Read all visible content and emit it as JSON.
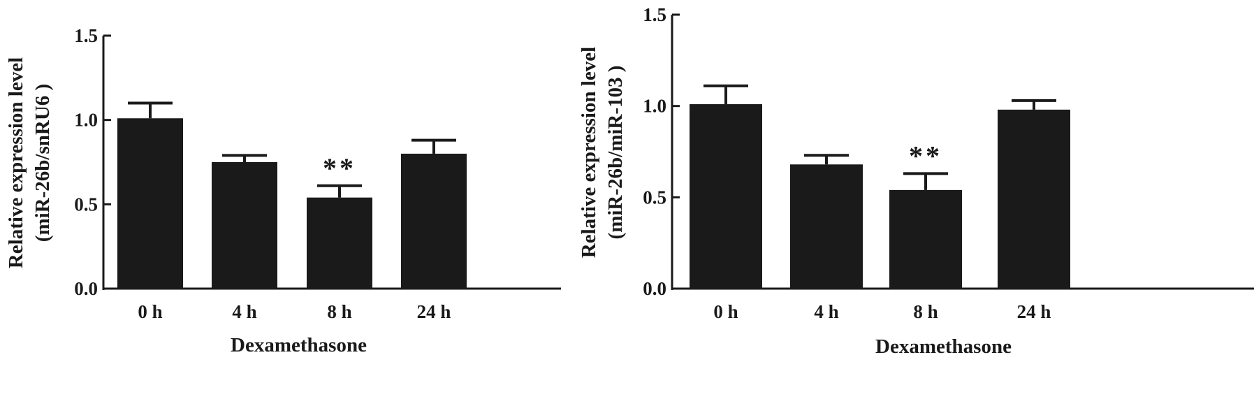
{
  "chart_data": [
    {
      "type": "bar",
      "categories": [
        "0 h",
        "4 h",
        "8 h",
        "24 h"
      ],
      "values": [
        1.01,
        0.75,
        0.54,
        0.8
      ],
      "errors": [
        0.09,
        0.04,
        0.07,
        0.08
      ],
      "significance": [
        "",
        "",
        "**",
        ""
      ],
      "xlabel": "Dexamethasone",
      "ylabel_lines": [
        "Relative expression level",
        "(miR-26b/snRU6 )"
      ],
      "ylim": [
        0,
        1.5
      ],
      "yticks": [
        "0.0",
        "0.5",
        "1.0",
        "1.5"
      ],
      "grid": false,
      "bar_color": "#1a1a1a"
    },
    {
      "type": "bar",
      "categories": [
        "0 h",
        "4 h",
        "8 h",
        "24 h"
      ],
      "values": [
        1.01,
        0.68,
        0.54,
        0.98
      ],
      "errors": [
        0.1,
        0.05,
        0.09,
        0.05
      ],
      "significance": [
        "",
        "",
        "**",
        ""
      ],
      "xlabel": "Dexamethasone",
      "ylabel_lines": [
        "Relative expression level",
        "(miR-26b/miR-103 )"
      ],
      "ylim": [
        0,
        1.5
      ],
      "yticks": [
        "0.0",
        "0.5",
        "1.0",
        "1.5"
      ],
      "grid": false,
      "bar_color": "#1a1a1a"
    }
  ]
}
